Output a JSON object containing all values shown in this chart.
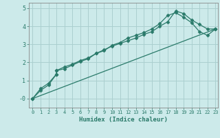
{
  "xlabel": "Humidex (Indice chaleur)",
  "background_color": "#cceaea",
  "grid_color": "#aacfcf",
  "line_color": "#2a7a6a",
  "xlim": [
    -0.5,
    23.3
  ],
  "ylim": [
    -0.5,
    5.3
  ],
  "yticks": [
    0,
    1,
    2,
    3,
    4,
    5
  ],
  "ytick_labels": [
    "-0",
    "1",
    "2",
    "3",
    "4",
    "5"
  ],
  "xticks": [
    0,
    1,
    2,
    3,
    4,
    5,
    6,
    7,
    8,
    9,
    10,
    11,
    12,
    13,
    14,
    15,
    16,
    17,
    18,
    19,
    20,
    21,
    22,
    23
  ],
  "line1_x": [
    0,
    1,
    2,
    3,
    3,
    4,
    5,
    6,
    7,
    8,
    9,
    10,
    11,
    12,
    13,
    14,
    15,
    16,
    17,
    18,
    19,
    20,
    21,
    22,
    23
  ],
  "line1_y": [
    0.0,
    0.55,
    0.85,
    1.35,
    1.55,
    1.75,
    1.9,
    2.1,
    2.25,
    2.5,
    2.7,
    2.9,
    3.05,
    3.2,
    3.35,
    3.55,
    3.7,
    4.0,
    4.25,
    4.85,
    4.7,
    4.35,
    4.1,
    3.85,
    3.85
  ],
  "line2_x": [
    0,
    1,
    2,
    3,
    3,
    4,
    5,
    6,
    7,
    8,
    9,
    10,
    11,
    12,
    13,
    14,
    15,
    16,
    17,
    18,
    19,
    20,
    21,
    22,
    23
  ],
  "line2_y": [
    0.0,
    0.45,
    0.75,
    1.35,
    1.55,
    1.65,
    1.85,
    2.05,
    2.2,
    2.5,
    2.65,
    2.95,
    3.1,
    3.35,
    3.5,
    3.65,
    3.85,
    4.15,
    4.6,
    4.75,
    4.5,
    4.2,
    3.7,
    3.5,
    3.85
  ],
  "line3_x": [
    0,
    23
  ],
  "line3_y": [
    0.0,
    3.85
  ],
  "marker": "D",
  "marker_size": 2.5,
  "line_width": 0.9
}
